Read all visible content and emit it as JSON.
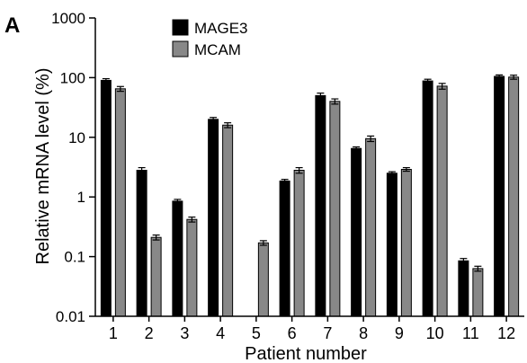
{
  "panel_label": "A",
  "chart_data": {
    "type": "bar",
    "scale": "log",
    "xlabel": "Patient number",
    "ylabel": "Relative mRNA level (%)",
    "ylim": [
      0.01,
      1000
    ],
    "yticks": [
      {
        "value": 0.01,
        "label": "0.01"
      },
      {
        "value": 0.1,
        "label": "0.1"
      },
      {
        "value": 1,
        "label": "1"
      },
      {
        "value": 10,
        "label": "10"
      },
      {
        "value": 100,
        "label": "100"
      },
      {
        "value": 1000,
        "label": "1000"
      }
    ],
    "categories": [
      "1",
      "2",
      "3",
      "4",
      "5",
      "6",
      "7",
      "8",
      "9",
      "10",
      "11",
      "12"
    ],
    "legend_position": "top-left",
    "grid": false,
    "series": [
      {
        "name": "MAGE3",
        "color": "#000000",
        "values": [
          90,
          2.8,
          0.85,
          20,
          null,
          1.85,
          50,
          6.5,
          2.5,
          88,
          0.085,
          105
        ],
        "errors": [
          6,
          0.3,
          0.06,
          1.5,
          null,
          0.12,
          5,
          0.4,
          0.15,
          6,
          0.008,
          6
        ]
      },
      {
        "name": "MCAM",
        "color": "#888888",
        "values": [
          65,
          0.21,
          0.42,
          16,
          0.17,
          2.8,
          40,
          9.5,
          2.9,
          72,
          0.063,
          102
        ],
        "errors": [
          6,
          0.02,
          0.04,
          1.5,
          0.015,
          0.3,
          4,
          1,
          0.2,
          8,
          0.006,
          8
        ]
      }
    ]
  }
}
